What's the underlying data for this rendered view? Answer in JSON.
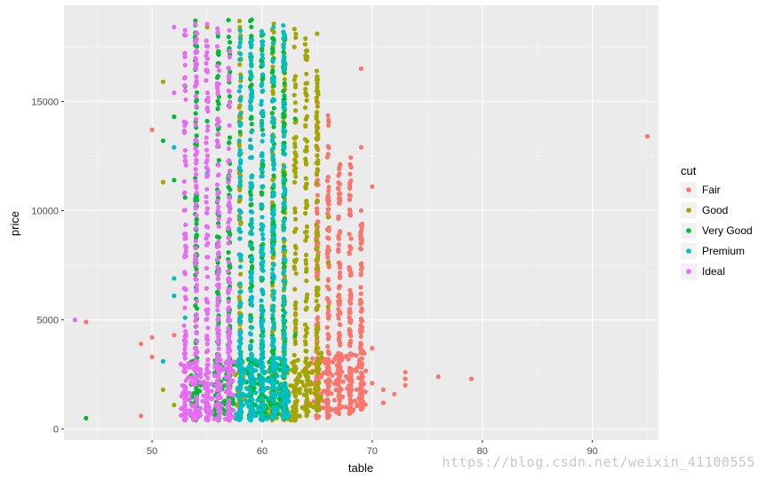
{
  "chart_data": {
    "type": "scatter",
    "xlabel": "table",
    "ylabel": "price",
    "xlim": [
      42,
      96
    ],
    "ylim": [
      -500,
      19400
    ],
    "x_ticks": [
      50,
      60,
      70,
      80,
      90
    ],
    "y_ticks": [
      0,
      5000,
      10000,
      15000
    ],
    "y_tick_labels": [
      "0",
      "5000",
      "10000",
      "15000"
    ],
    "grid": true,
    "legend_position": "right",
    "legend_title": "cut",
    "series": [
      {
        "name": "Fair",
        "color": "#F8766D",
        "columns": [
          {
            "x": 65,
            "ymin": 500,
            "ymax": 15600
          },
          {
            "x": 66,
            "ymin": 500,
            "ymax": 14500
          },
          {
            "x": 67,
            "ymin": 700,
            "ymax": 12300
          },
          {
            "x": 68,
            "ymin": 700,
            "ymax": 12500
          },
          {
            "x": 69,
            "ymin": 900,
            "ymax": 9800
          }
        ],
        "points": [
          [
            44,
            4900
          ],
          [
            49,
            600
          ],
          [
            49,
            3900
          ],
          [
            50,
            4200
          ],
          [
            50,
            3300
          ],
          [
            50,
            13700
          ],
          [
            51,
            3100
          ],
          [
            52,
            4300
          ],
          [
            64,
            1200
          ],
          [
            64,
            2800
          ],
          [
            65,
            12900
          ],
          [
            67,
            11900
          ],
          [
            68,
            5800
          ],
          [
            69,
            16500
          ],
          [
            69,
            12900
          ],
          [
            69,
            7300
          ],
          [
            69,
            10000
          ],
          [
            70,
            11100
          ],
          [
            70,
            3700
          ],
          [
            70,
            2100
          ],
          [
            71,
            1800
          ],
          [
            71,
            1200
          ],
          [
            72,
            1600
          ],
          [
            73,
            2300
          ],
          [
            73,
            2000
          ],
          [
            73,
            2600
          ],
          [
            76,
            2400
          ],
          [
            79,
            2300
          ],
          [
            95,
            13400
          ]
        ]
      },
      {
        "name": "Good",
        "color": "#A3A500",
        "columns": [
          {
            "x": 58,
            "ymin": 400,
            "ymax": 18700
          },
          {
            "x": 61,
            "ymin": 400,
            "ymax": 18700
          },
          {
            "x": 62,
            "ymin": 400,
            "ymax": 18600
          },
          {
            "x": 63,
            "ymin": 400,
            "ymax": 18600
          },
          {
            "x": 64,
            "ymin": 600,
            "ymax": 18200
          },
          {
            "x": 65,
            "ymin": 800,
            "ymax": 16500
          }
        ],
        "points": [
          [
            51,
            15900
          ],
          [
            51,
            11300
          ],
          [
            51,
            1800
          ],
          [
            52,
            1100
          ],
          [
            53,
            700
          ],
          [
            55,
            18400
          ],
          [
            56,
            17300
          ],
          [
            57,
            16200
          ],
          [
            59,
            15000
          ],
          [
            60,
            16800
          ],
          [
            62,
            17900
          ],
          [
            63,
            13300
          ],
          [
            64,
            11200
          ],
          [
            65,
            18100
          ],
          [
            66,
            9700
          ],
          [
            66,
            7600
          ],
          [
            66,
            5600
          ]
        ]
      },
      {
        "name": "Very Good",
        "color": "#00BA38",
        "columns": [
          {
            "x": 54,
            "ymin": 400,
            "ymax": 18700
          },
          {
            "x": 56,
            "ymin": 400,
            "ymax": 18700
          },
          {
            "x": 57,
            "ymin": 400,
            "ymax": 18800
          },
          {
            "x": 59,
            "ymin": 400,
            "ymax": 18800
          },
          {
            "x": 60,
            "ymin": 400,
            "ymax": 18700
          },
          {
            "x": 61,
            "ymin": 500,
            "ymax": 18100
          },
          {
            "x": 62,
            "ymin": 500,
            "ymax": 17900
          }
        ],
        "points": [
          [
            44,
            500
          ],
          [
            51,
            13200
          ],
          [
            52,
            14300
          ],
          [
            52,
            11400
          ],
          [
            53,
            15700
          ],
          [
            53,
            10600
          ],
          [
            54,
            7900
          ],
          [
            55,
            14100
          ],
          [
            58,
            13600
          ],
          [
            63,
            14200
          ],
          [
            63,
            4300
          ]
        ]
      },
      {
        "name": "Premium",
        "color": "#00BFC4",
        "columns": [
          {
            "x": 58,
            "ymin": 400,
            "ymax": 18800
          },
          {
            "x": 59,
            "ymin": 400,
            "ymax": 18800
          },
          {
            "x": 60,
            "ymin": 400,
            "ymax": 18700
          },
          {
            "x": 61,
            "ymin": 500,
            "ymax": 18700
          },
          {
            "x": 62,
            "ymin": 500,
            "ymax": 18600
          }
        ],
        "points": [
          [
            51,
            3100
          ],
          [
            52,
            12900
          ],
          [
            52,
            6900
          ],
          [
            52,
            6100
          ],
          [
            53,
            5100
          ],
          [
            55,
            11700
          ],
          [
            57,
            10200
          ],
          [
            60,
            9700
          ],
          [
            61,
            5600
          ],
          [
            62,
            3400
          ]
        ]
      },
      {
        "name": "Ideal",
        "color": "#E76BF3",
        "columns": [
          {
            "x": 53,
            "ymin": 400,
            "ymax": 18500
          },
          {
            "x": 54,
            "ymin": 400,
            "ymax": 18800
          },
          {
            "x": 55,
            "ymin": 400,
            "ymax": 18800
          },
          {
            "x": 56,
            "ymin": 400,
            "ymax": 18700
          },
          {
            "x": 57,
            "ymin": 400,
            "ymax": 18700
          }
        ],
        "points": [
          [
            43,
            5000
          ],
          [
            52,
            18400
          ],
          [
            52,
            15400
          ],
          [
            53,
            16100
          ],
          [
            54,
            17300
          ],
          [
            55,
            12300
          ],
          [
            56,
            8400
          ],
          [
            57,
            6900
          ]
        ]
      }
    ]
  },
  "watermark": "https://blog.csdn.net/weixin_41100555"
}
